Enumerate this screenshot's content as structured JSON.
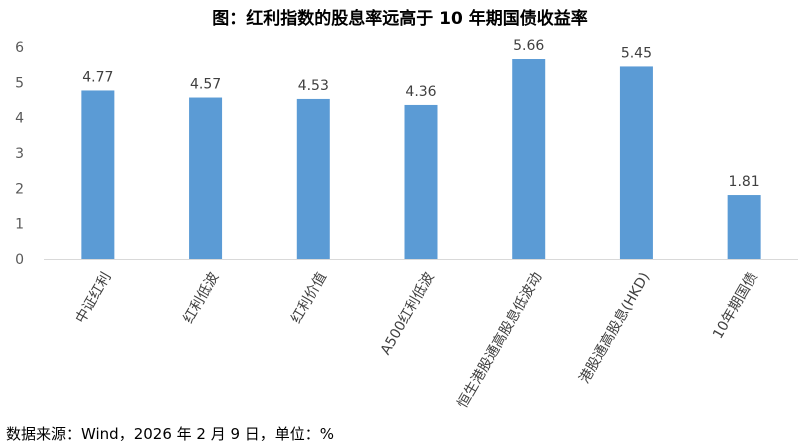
{
  "chart_data": {
    "type": "bar",
    "title": "图：红利指数的股息率远高于 10 年期国债收益率",
    "categories": [
      "中证红利",
      "红利低波",
      "红利价值",
      "A500红利低波",
      "恒生港股通高股息低波动",
      "港股通高股息(HKD)",
      "10年期国债"
    ],
    "values": [
      4.77,
      4.57,
      4.53,
      4.36,
      5.66,
      5.45,
      1.81
    ],
    "data_labels": [
      "4.77",
      "4.57",
      "4.53",
      "4.36",
      "5.66",
      "5.45",
      "1.81"
    ],
    "ylim": [
      0,
      6
    ],
    "yticks": [
      "0",
      "1",
      "2",
      "3",
      "4",
      "5",
      "6"
    ],
    "xlabel": "",
    "ylabel": "",
    "grid": false,
    "bar_color": "#5B9BD5",
    "source_note": "数据来源：Wind，2026 年 2 月 9 日，单位：%"
  }
}
